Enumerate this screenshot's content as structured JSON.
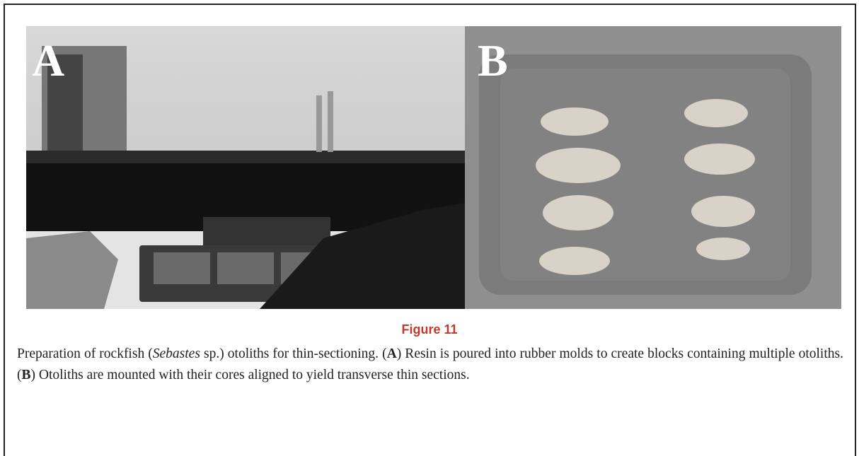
{
  "figure": {
    "panels": [
      {
        "label": "A"
      },
      {
        "label": "B"
      }
    ],
    "title": "Figure 11",
    "caption": [
      "Preparation of rockfish (",
      "Sebastes",
      " sp.) otoliths for thin-sectioning. (",
      "A",
      ") Resin is poured into rubber molds to create blocks containing multiple otoliths. (",
      "B",
      ") Otoliths are mounted with their cores aligned to yield transverse thin sections."
    ]
  }
}
